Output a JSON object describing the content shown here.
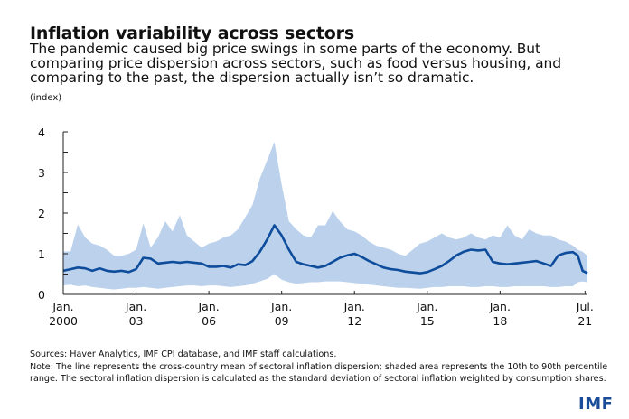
{
  "header": {
    "title": "Inflation variability across sectors",
    "subtitle": "The pandemic caused big price swings in some parts of the economy. But comparing price dispersion across sectors, such as food versus housing, and comparing to the past, the dispersion actually isn’t so dramatic.",
    "unit": "(index)"
  },
  "footer": {
    "sources": "Sources: Haver Analytics, IMF CPI database, and IMF staff calculations.",
    "note": "Note: The line represents the cross-country mean of sectoral inflation dispersion; shaded area represents the 10th to 90th percentile range. The sectoral inflation dispersion is calculated as the standard deviation of sectoral inflation weighted by consumption shares.",
    "logo": "IMF"
  },
  "colors": {
    "line": "#0e4c9c",
    "band": "#bcd2ec",
    "axis": "#222222",
    "logo": "#1a4c9a"
  },
  "chart_data": {
    "type": "area",
    "title": "Inflation variability across sectors",
    "ylabel": "(index)",
    "xlabel": "",
    "ylim": [
      0,
      4
    ],
    "xlim": [
      2000.0,
      2021.6
    ],
    "grid": false,
    "legend": "none",
    "yticks": [
      0,
      1,
      2,
      3,
      4
    ],
    "yminor_ticks": [
      0.5,
      1.5,
      2.5,
      3.5
    ],
    "xticks": [
      {
        "x": 2000.0,
        "line1": "Jan.",
        "line2": "2000"
      },
      {
        "x": 2003.0,
        "line1": "Jan.",
        "line2": "03"
      },
      {
        "x": 2006.0,
        "line1": "Jan.",
        "line2": "06"
      },
      {
        "x": 2009.0,
        "line1": "Jan.",
        "line2": "09"
      },
      {
        "x": 2012.0,
        "line1": "Jan.",
        "line2": "12"
      },
      {
        "x": 2015.0,
        "line1": "Jan.",
        "line2": "15"
      },
      {
        "x": 2018.0,
        "line1": "Jan.",
        "line2": "18"
      },
      {
        "x": 2021.5,
        "line1": "Jul.",
        "line2": "21"
      }
    ],
    "x": [
      2000.0,
      2000.3,
      2000.6,
      2000.9,
      2001.2,
      2001.5,
      2001.8,
      2002.1,
      2002.4,
      2002.7,
      2003.0,
      2003.3,
      2003.6,
      2003.9,
      2004.2,
      2004.5,
      2004.8,
      2005.1,
      2005.4,
      2005.7,
      2006.0,
      2006.3,
      2006.6,
      2006.9,
      2007.2,
      2007.5,
      2007.8,
      2008.1,
      2008.4,
      2008.7,
      2009.0,
      2009.3,
      2009.6,
      2009.9,
      2010.2,
      2010.5,
      2010.8,
      2011.1,
      2011.4,
      2011.7,
      2012.0,
      2012.3,
      2012.6,
      2012.9,
      2013.2,
      2013.5,
      2013.8,
      2014.1,
      2014.4,
      2014.7,
      2015.0,
      2015.3,
      2015.6,
      2015.9,
      2016.2,
      2016.5,
      2016.8,
      2017.1,
      2017.4,
      2017.7,
      2018.0,
      2018.3,
      2018.6,
      2018.9,
      2019.2,
      2019.5,
      2019.8,
      2020.1,
      2020.4,
      2020.7,
      2021.0,
      2021.2,
      2021.4,
      2021.6
    ],
    "series": [
      {
        "name": "Cross-country mean",
        "values": [
          0.58,
          0.62,
          0.66,
          0.64,
          0.58,
          0.64,
          0.58,
          0.56,
          0.58,
          0.55,
          0.62,
          0.9,
          0.88,
          0.76,
          0.78,
          0.8,
          0.78,
          0.8,
          0.78,
          0.76,
          0.68,
          0.68,
          0.7,
          0.66,
          0.74,
          0.72,
          0.82,
          1.05,
          1.35,
          1.7,
          1.45,
          1.1,
          0.8,
          0.74,
          0.7,
          0.66,
          0.7,
          0.8,
          0.9,
          0.96,
          1.0,
          0.92,
          0.82,
          0.74,
          0.66,
          0.62,
          0.6,
          0.56,
          0.54,
          0.52,
          0.55,
          0.62,
          0.7,
          0.82,
          0.96,
          1.05,
          1.1,
          1.08,
          1.1,
          0.8,
          0.76,
          0.74,
          0.76,
          0.78,
          0.8,
          0.82,
          0.76,
          0.7,
          0.96,
          1.02,
          1.04,
          0.96,
          0.58,
          0.52
        ]
      },
      {
        "name": "90th percentile",
        "values": [
          1.05,
          1.06,
          1.72,
          1.4,
          1.25,
          1.2,
          1.1,
          0.95,
          0.95,
          1.0,
          1.1,
          1.75,
          1.15,
          1.4,
          1.8,
          1.55,
          1.95,
          1.45,
          1.3,
          1.15,
          1.25,
          1.3,
          1.4,
          1.45,
          1.6,
          1.9,
          2.2,
          2.85,
          3.3,
          3.75,
          2.7,
          1.8,
          1.6,
          1.45,
          1.4,
          1.7,
          1.7,
          2.05,
          1.8,
          1.6,
          1.55,
          1.45,
          1.3,
          1.2,
          1.15,
          1.1,
          1.0,
          0.95,
          1.1,
          1.25,
          1.3,
          1.4,
          1.5,
          1.4,
          1.35,
          1.4,
          1.5,
          1.4,
          1.35,
          1.45,
          1.4,
          1.7,
          1.45,
          1.35,
          1.6,
          1.5,
          1.45,
          1.45,
          1.35,
          1.3,
          1.2,
          1.1,
          1.05,
          0.95
        ]
      },
      {
        "name": "10th percentile",
        "values": [
          0.22,
          0.24,
          0.2,
          0.22,
          0.18,
          0.16,
          0.14,
          0.12,
          0.14,
          0.16,
          0.16,
          0.18,
          0.16,
          0.14,
          0.16,
          0.18,
          0.2,
          0.22,
          0.22,
          0.2,
          0.22,
          0.22,
          0.2,
          0.18,
          0.2,
          0.22,
          0.26,
          0.32,
          0.38,
          0.5,
          0.36,
          0.3,
          0.26,
          0.28,
          0.3,
          0.3,
          0.32,
          0.32,
          0.32,
          0.3,
          0.28,
          0.26,
          0.24,
          0.22,
          0.2,
          0.18,
          0.16,
          0.16,
          0.15,
          0.14,
          0.16,
          0.18,
          0.18,
          0.2,
          0.2,
          0.2,
          0.18,
          0.18,
          0.2,
          0.2,
          0.18,
          0.18,
          0.2,
          0.2,
          0.2,
          0.2,
          0.2,
          0.18,
          0.18,
          0.2,
          0.2,
          0.3,
          0.32,
          0.3
        ]
      }
    ]
  }
}
